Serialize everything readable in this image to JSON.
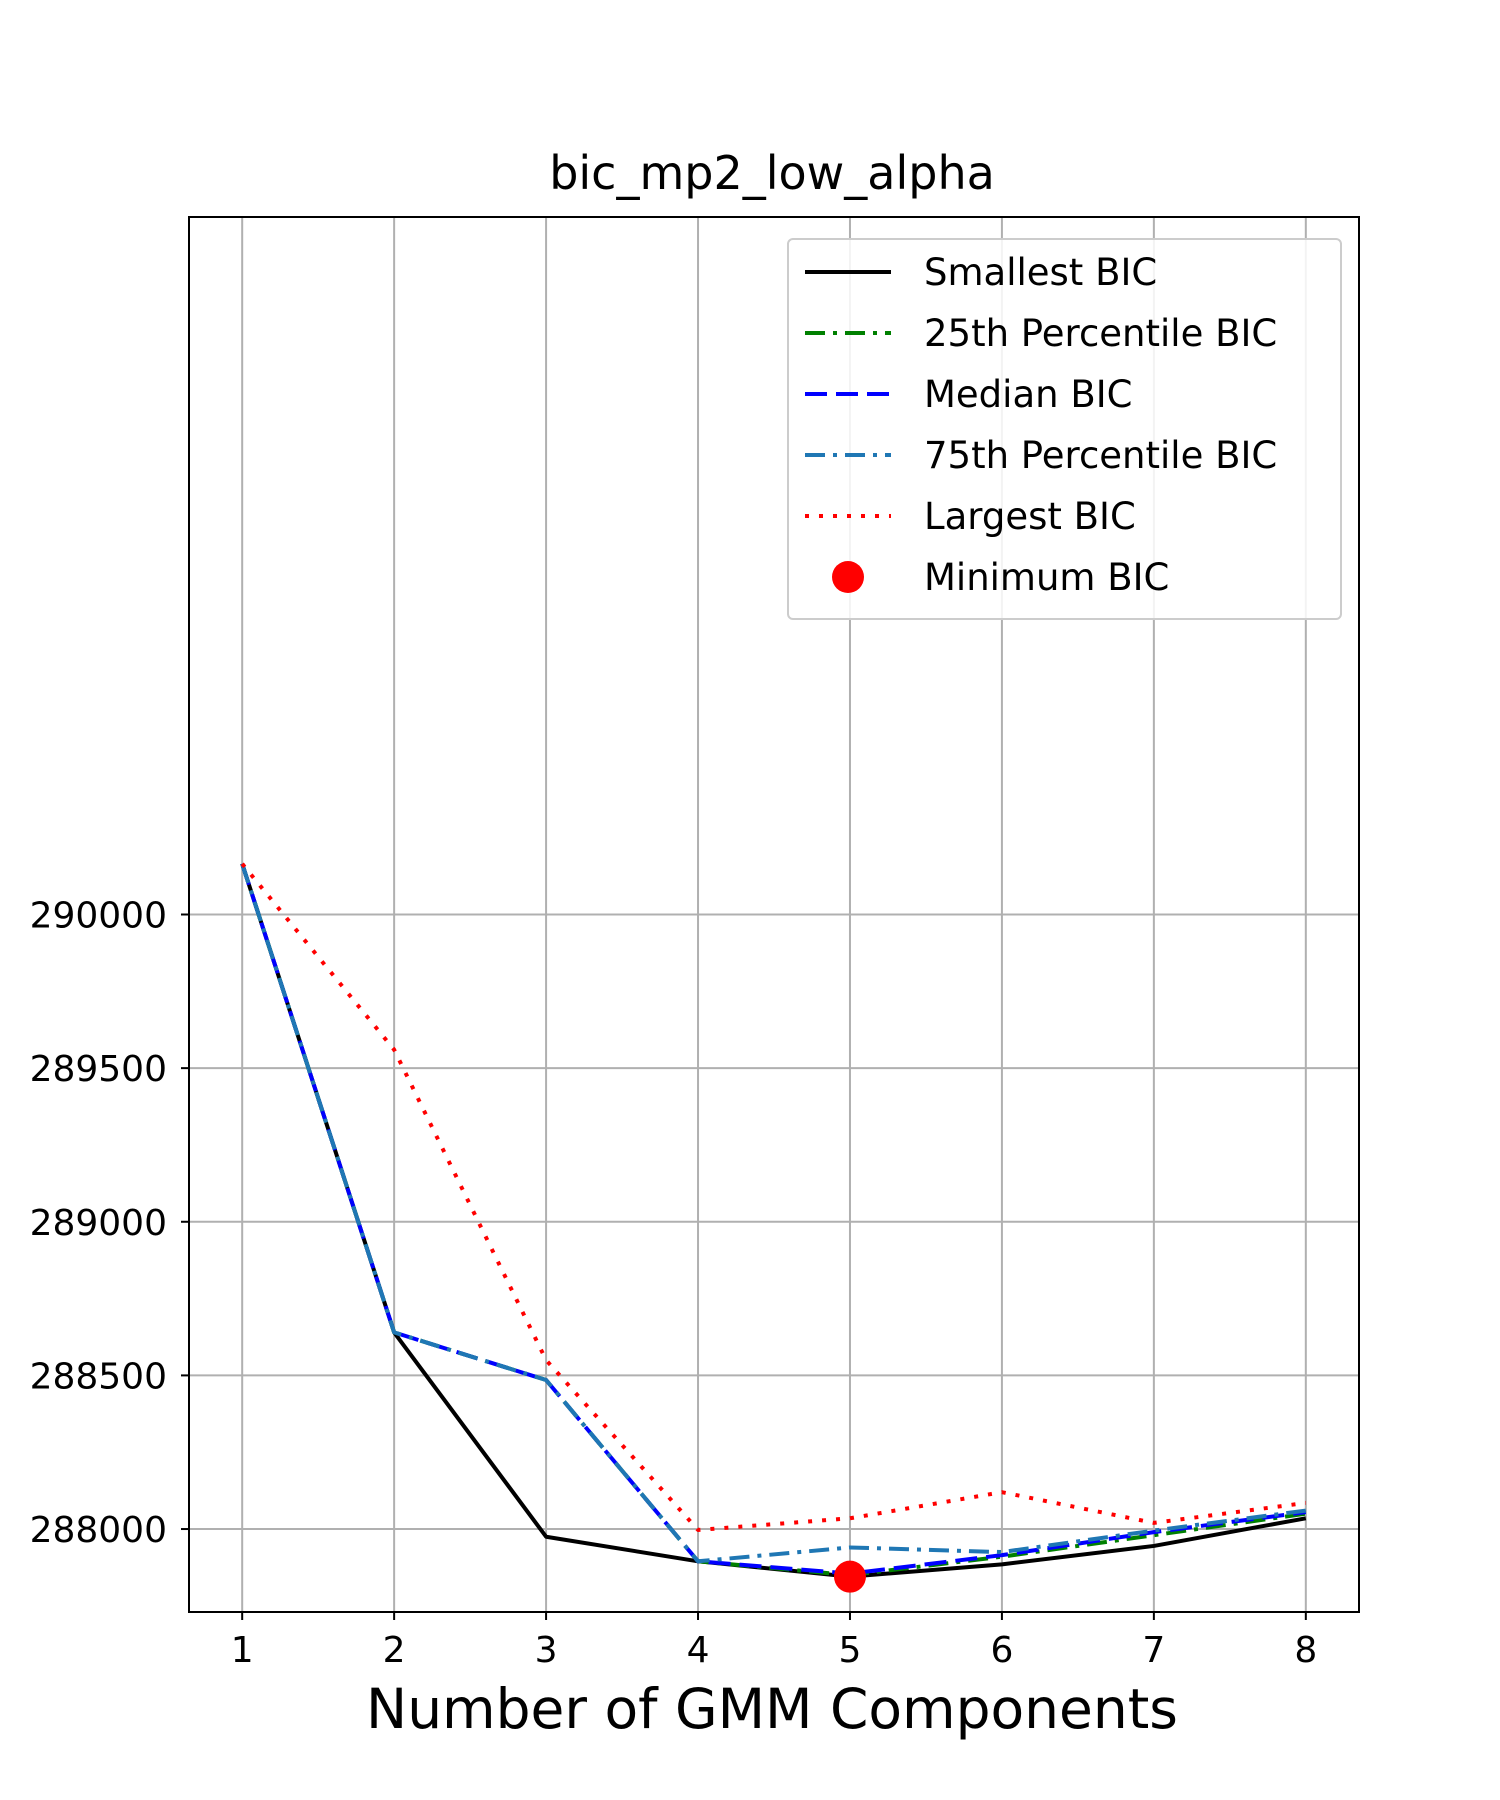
{
  "chart_data": {
    "type": "line",
    "title": "bic_mp2_low_alpha",
    "xlabel": "Number of GMM Components",
    "ylabel": "",
    "x": [
      1,
      2,
      3,
      4,
      5,
      6,
      7,
      8
    ],
    "xlim": [
      0.65,
      8.35
    ],
    "ylim": [
      287730,
      292270
    ],
    "xticks": [
      "1",
      "2",
      "3",
      "4",
      "5",
      "6",
      "7",
      "8"
    ],
    "yticks": [
      288000,
      288500,
      289000,
      289500,
      290000
    ],
    "ytick_labels": [
      "288000",
      "288500",
      "289000",
      "289500",
      "290000"
    ],
    "grid": true,
    "legend_position": "top-right",
    "series": [
      {
        "name": "Smallest BIC",
        "color": "#000000",
        "style": "solid",
        "values": [
          290165,
          288640,
          287975,
          287895,
          287845,
          287885,
          287945,
          288035
        ]
      },
      {
        "name": "25th Percentile BIC",
        "color": "#008000",
        "style": "dashdot",
        "values": [
          290165,
          288640,
          288485,
          287895,
          287850,
          287910,
          287980,
          288050
        ]
      },
      {
        "name": "Median BIC",
        "color": "#0000ff",
        "style": "dashed",
        "values": [
          290165,
          288640,
          288485,
          287895,
          287855,
          287915,
          287990,
          288055
        ]
      },
      {
        "name": "75th Percentile BIC",
        "color": "#1f77b4",
        "style": "dashdot",
        "values": [
          290165,
          288640,
          288485,
          287895,
          287940,
          287925,
          287995,
          288060
        ]
      },
      {
        "name": "Largest BIC",
        "color": "#ff0000",
        "style": "dotted",
        "values": [
          290165,
          289560,
          288550,
          287997,
          288035,
          288120,
          288020,
          288085
        ]
      }
    ],
    "minimum_point": {
      "name": "Minimum BIC",
      "color": "#ff0000",
      "x": 5,
      "y": 287845
    }
  }
}
